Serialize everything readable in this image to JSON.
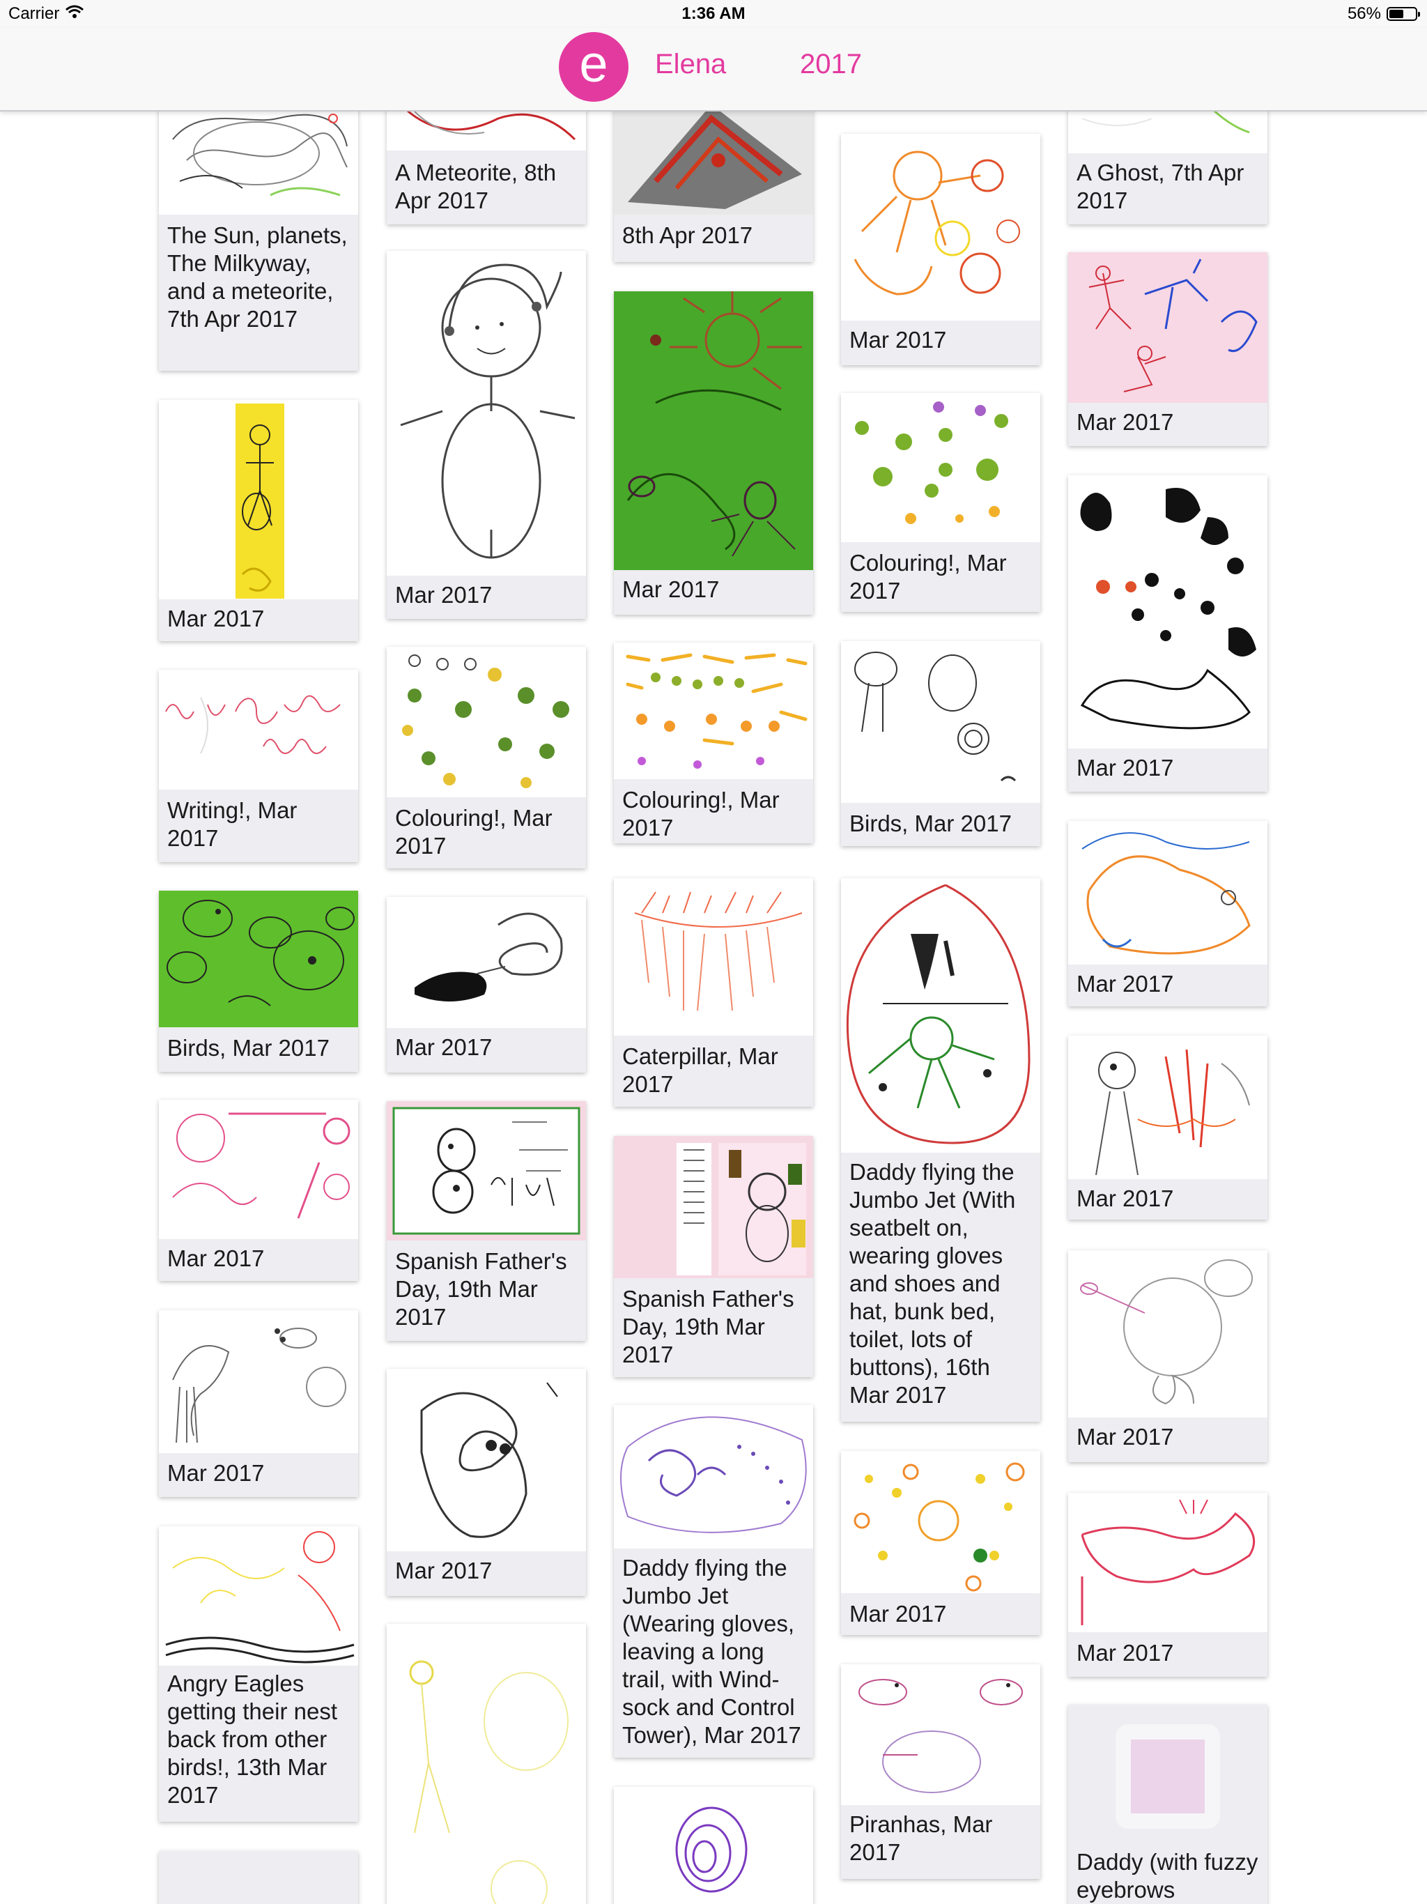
{
  "status_bar": {
    "carrier": "Carrier",
    "time": "1:36 AM",
    "battery": "56%",
    "battery_level": 0.56
  },
  "nav": {
    "avatar_letter": "e",
    "name": "Elena",
    "year": "2017"
  },
  "colors": {
    "accent": "#e33aa0",
    "card_background": "#ededf2",
    "green_paper": "#58b82a",
    "pink_paper": "#f7dbe6"
  },
  "artworks": {
    "col1": [
      {
        "caption": "The Sun, planets, The Milkyway, and a meteorite, 7th Apr 2017"
      },
      {
        "caption": "Mar 2017"
      },
      {
        "caption": "Writing!, Mar 2017"
      },
      {
        "caption": "Birds, Mar 2017"
      },
      {
        "caption": "Mar 2017"
      },
      {
        "caption": "Mar 2017"
      },
      {
        "caption": "Angry Eagles getting their nest back from other birds!, 13th Mar 2017"
      },
      {
        "caption": ""
      }
    ],
    "col2": [
      {
        "caption": "A Meteorite, 8th Apr 2017"
      },
      {
        "caption": "Mar 2017"
      },
      {
        "caption": "Colouring!, Mar 2017"
      },
      {
        "caption": "Mar 2017"
      },
      {
        "caption": "Spanish Father's Day, 19th Mar 2017"
      },
      {
        "caption": "Mar 2017"
      },
      {
        "caption": ""
      }
    ],
    "col3": [
      {
        "caption": "8th Apr 2017"
      },
      {
        "caption": "Mar 2017"
      },
      {
        "caption": "Colouring!, Mar 2017"
      },
      {
        "caption": "Caterpillar, Mar 2017"
      },
      {
        "caption": "Spanish Father's Day, 19th Mar 2017"
      },
      {
        "caption": "Daddy flying the Jumbo Jet (Wearing gloves, leaving a long trail, with Wind-sock and Control Tower), Mar 2017"
      },
      {
        "caption": ""
      }
    ],
    "col4": [
      {
        "caption": "Mar 2017"
      },
      {
        "caption": "Colouring!, Mar 2017"
      },
      {
        "caption": "Birds, Mar 2017"
      },
      {
        "caption": "Daddy flying the Jumbo Jet (With seatbelt on, wearing gloves and shoes and hat, bunk bed, toilet, lots of buttons), 16th Mar 2017"
      },
      {
        "caption": "Mar 2017"
      },
      {
        "caption": "Piranhas, Mar 2017"
      }
    ],
    "col5": [
      {
        "caption": "A Ghost, 7th Apr 2017"
      },
      {
        "caption": "Mar 2017"
      },
      {
        "caption": "Mar 2017"
      },
      {
        "caption": "Mar 2017"
      },
      {
        "caption": "Mar 2017"
      },
      {
        "caption": "Mar 2017"
      },
      {
        "caption": "Mar 2017"
      },
      {
        "caption": "Daddy (with fuzzy eyebrows"
      }
    ]
  }
}
